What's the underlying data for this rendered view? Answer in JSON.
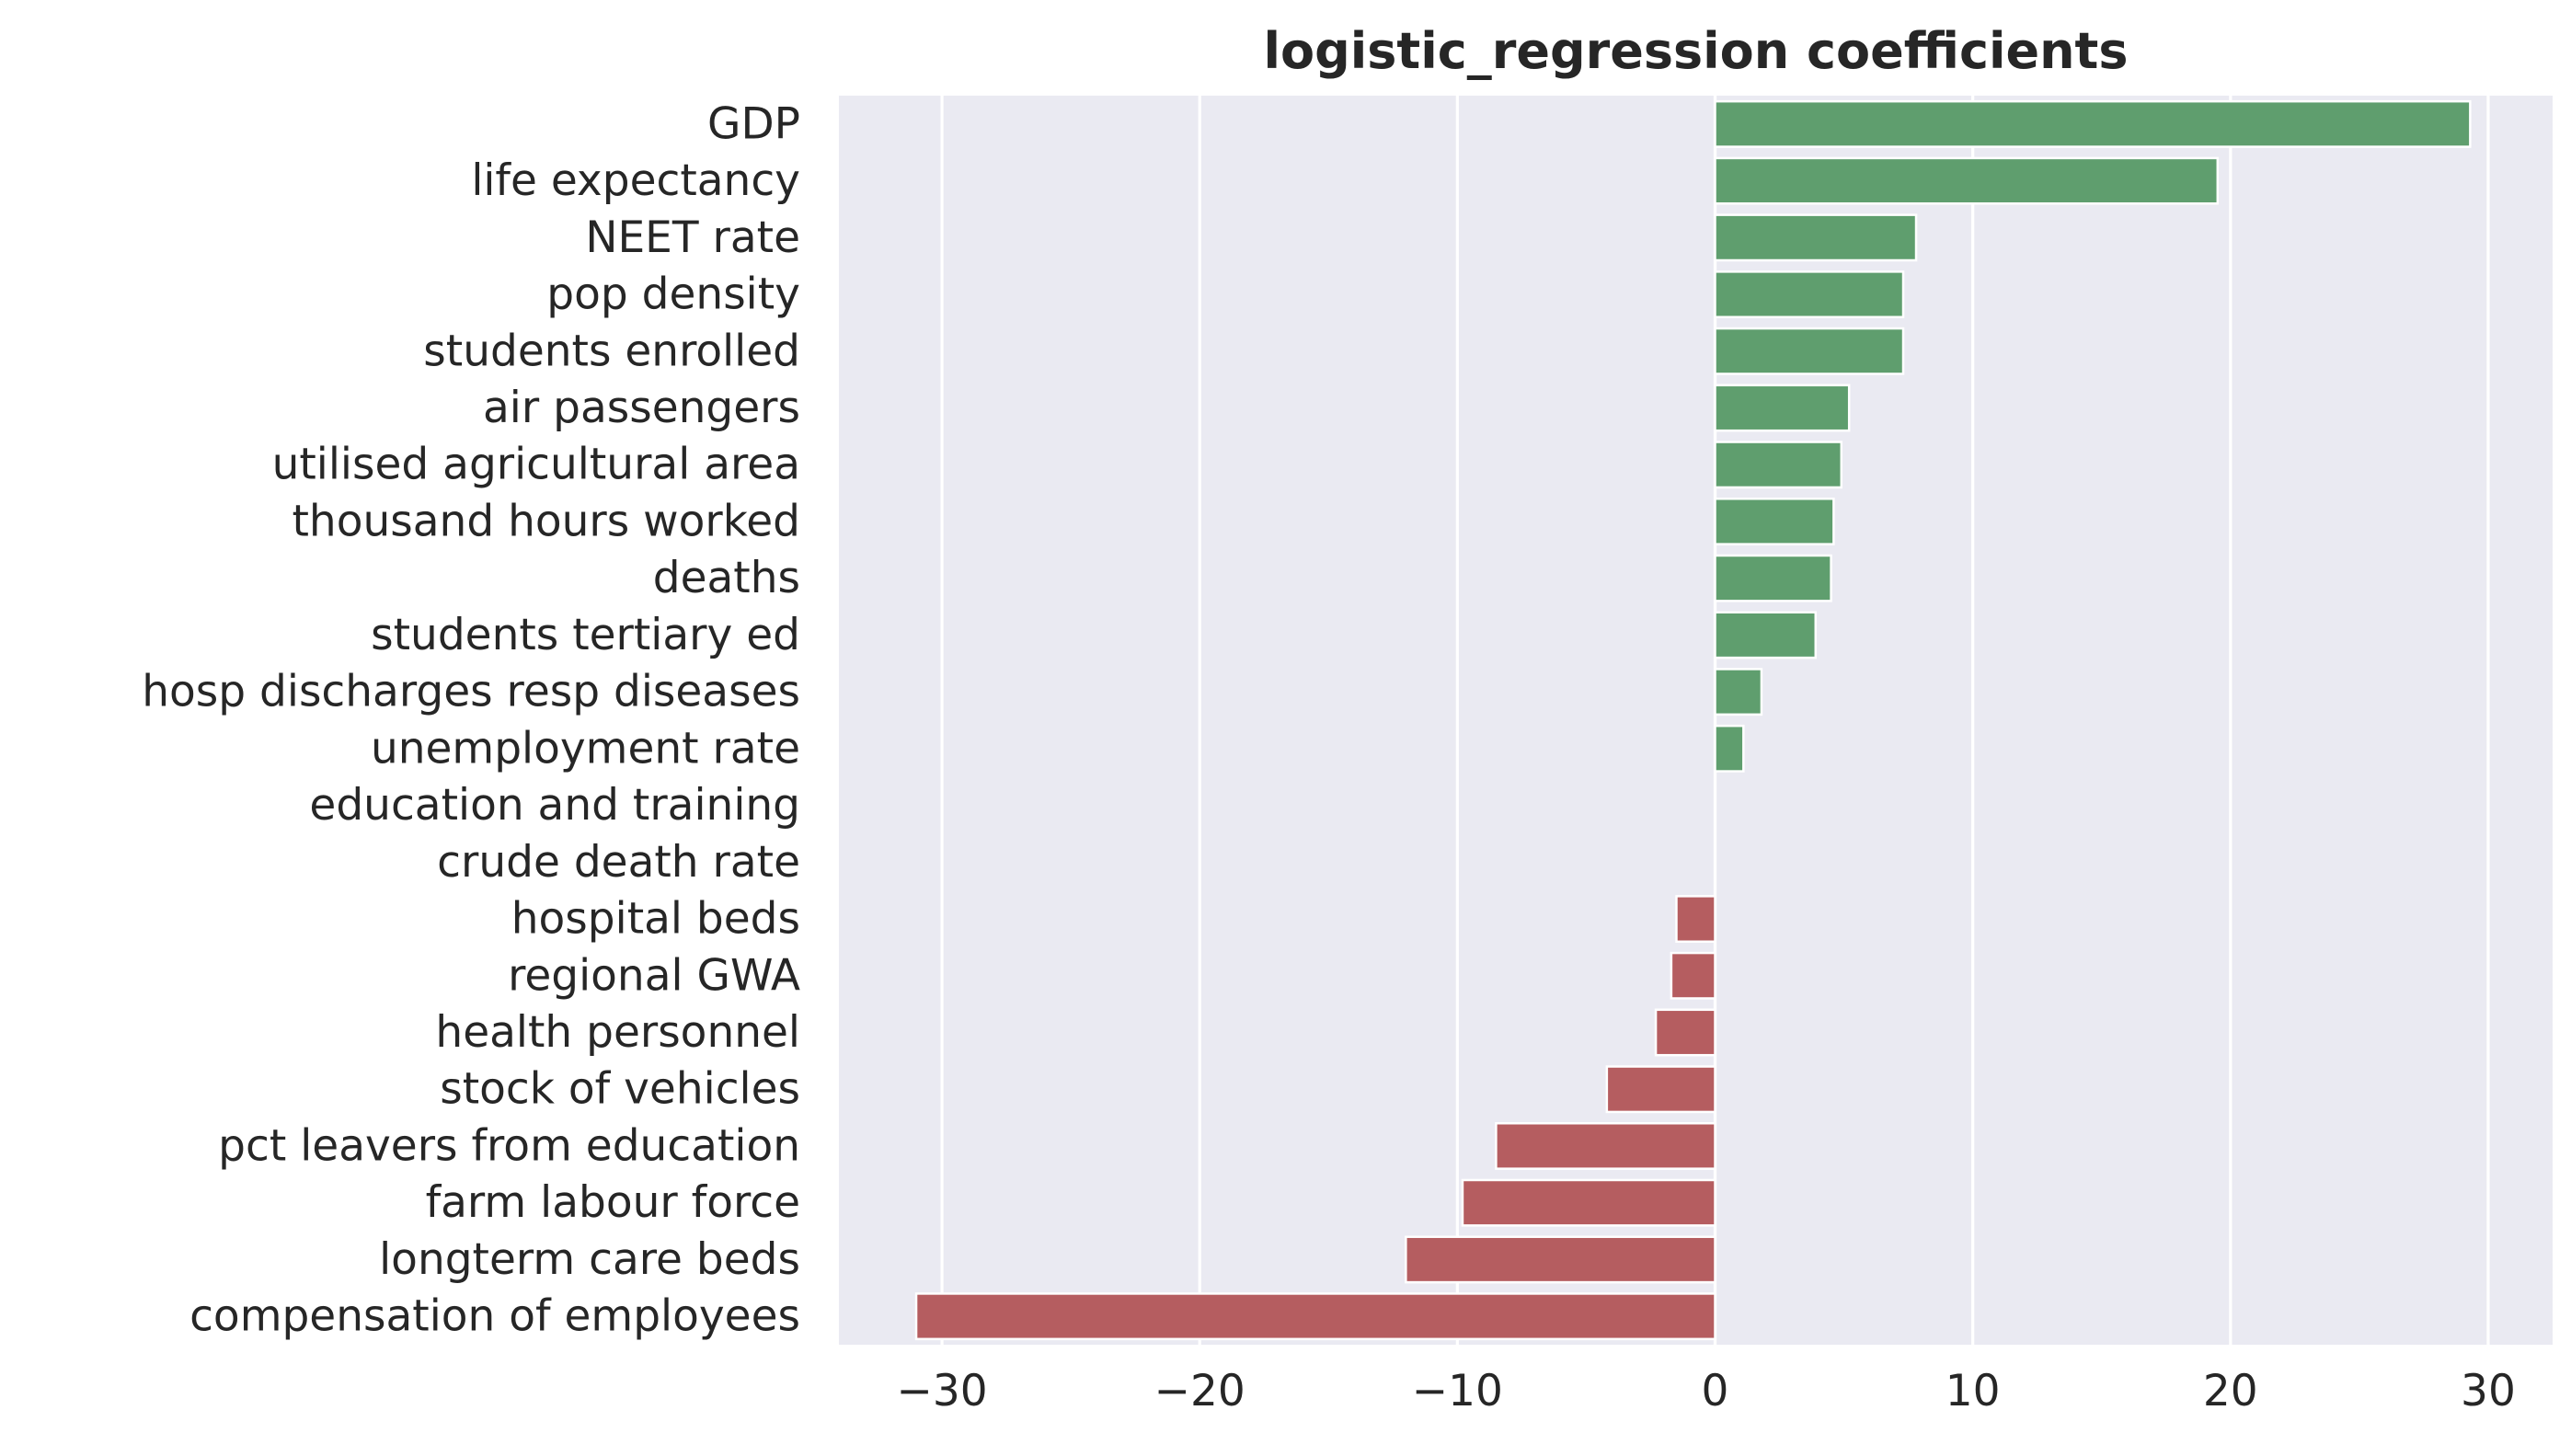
{
  "chart_data": {
    "type": "bar",
    "orientation": "horizontal",
    "title": "logistic_regression coefficients",
    "xlabel": "",
    "ylabel": "",
    "xlim": [
      -34,
      32.5
    ],
    "xticks": [
      -30,
      -20,
      -10,
      0,
      10,
      20,
      30
    ],
    "xtick_labels": [
      "−30",
      "−20",
      "−10",
      "0",
      "10",
      "20",
      "30"
    ],
    "grid": true,
    "legend": "none",
    "colors": {
      "positive": "#5f9e6e",
      "negative": "#b55d60",
      "background": "#eaeaf2",
      "grid": "#ffffff",
      "text": "#262626"
    },
    "categories": [
      "GDP",
      "life expectancy",
      "NEET rate",
      "pop density",
      "students enrolled",
      "air passengers",
      "utilised agricultural area",
      "thousand hours worked",
      "deaths",
      "students tertiary ed",
      "hosp discharges resp diseases",
      "unemployment rate",
      "education and training",
      "crude death rate",
      "hospital beds",
      "regional GWA",
      "health personnel",
      "stock of vehicles",
      "pct leavers from education",
      "farm labour force",
      "longterm care beds",
      "compensation of employees"
    ],
    "values": [
      29.3,
      19.5,
      7.8,
      7.3,
      7.3,
      5.2,
      4.9,
      4.6,
      4.5,
      3.9,
      1.8,
      1.1,
      0,
      0,
      -1.5,
      -1.7,
      -2.3,
      -4.2,
      -8.5,
      -9.8,
      -12.0,
      -31.0
    ]
  }
}
